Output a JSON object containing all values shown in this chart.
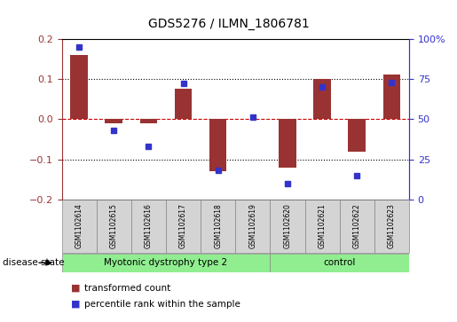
{
  "title": "GDS5276 / ILMN_1806781",
  "samples": [
    "GSM1102614",
    "GSM1102615",
    "GSM1102616",
    "GSM1102617",
    "GSM1102618",
    "GSM1102619",
    "GSM1102620",
    "GSM1102621",
    "GSM1102622",
    "GSM1102623"
  ],
  "bar_values": [
    0.16,
    -0.01,
    -0.01,
    0.075,
    -0.13,
    0.0,
    -0.12,
    0.1,
    -0.08,
    0.11
  ],
  "dot_percentiles": [
    95,
    43,
    33,
    72,
    18,
    51,
    10,
    70,
    15,
    73
  ],
  "bar_color": "#993333",
  "dot_color": "#3333cc",
  "ylim": [
    -0.2,
    0.2
  ],
  "yticks_left": [
    -0.2,
    -0.1,
    0.0,
    0.1,
    0.2
  ],
  "right_ylim": [
    0,
    100
  ],
  "yticks_right": [
    0,
    25,
    50,
    75,
    100
  ],
  "ytick_right_labels": [
    "0",
    "25",
    "50",
    "75",
    "100%"
  ],
  "groups": [
    {
      "label": "Myotonic dystrophy type 2",
      "start": 0,
      "end": 6,
      "color": "#90EE90"
    },
    {
      "label": "control",
      "start": 6,
      "end": 10,
      "color": "#90EE90"
    }
  ],
  "disease_state_label": "disease state",
  "legend_bar_label": "transformed count",
  "legend_dot_label": "percentile rank within the sample",
  "background_color": "#ffffff",
  "zero_line_color": "#cc0000",
  "box_facecolor": "#d4d4d4",
  "box_edgecolor": "#888888"
}
